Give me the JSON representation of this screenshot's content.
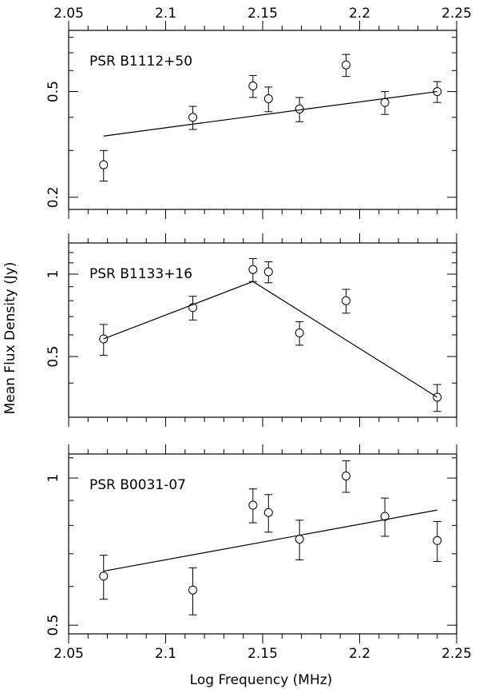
{
  "chart_data": {
    "type": "scatter",
    "xlabel": "Log Frequency (MHz)",
    "ylabel": "Mean Flux Density (Jy)",
    "xlim": [
      2.05,
      2.25
    ],
    "x_ticks": [
      "2.05",
      "2.1",
      "2.15",
      "2.2",
      "2.25"
    ],
    "grid": false,
    "panels": [
      {
        "label": "PSR B1112+50",
        "yscale": "log",
        "ylim": [
          0.18,
          0.85
        ],
        "y_ticks": [
          {
            "value": 0.2,
            "label": "0.2"
          },
          {
            "value": 0.5,
            "label": "0.5"
          }
        ],
        "points": [
          {
            "x": 2.068,
            "y": 0.265,
            "err": 0.035
          },
          {
            "x": 2.114,
            "y": 0.4,
            "err": 0.04
          },
          {
            "x": 2.145,
            "y": 0.525,
            "err": 0.05
          },
          {
            "x": 2.153,
            "y": 0.47,
            "err": 0.05
          },
          {
            "x": 2.169,
            "y": 0.43,
            "err": 0.045
          },
          {
            "x": 2.193,
            "y": 0.63,
            "err": 0.06
          },
          {
            "x": 2.213,
            "y": 0.455,
            "err": 0.045
          },
          {
            "x": 2.24,
            "y": 0.5,
            "err": 0.045
          }
        ],
        "fit": [
          {
            "x": 2.068,
            "y": 0.34
          },
          {
            "x": 2.24,
            "y": 0.5
          }
        ]
      },
      {
        "label": "PSR B1133+16",
        "yscale": "log",
        "ylim": [
          0.3,
          1.3
        ],
        "y_ticks": [
          {
            "value": 0.5,
            "label": "0.5"
          },
          {
            "value": 1,
            "label": "1"
          }
        ],
        "points": [
          {
            "x": 2.068,
            "y": 0.58,
            "err": 0.075
          },
          {
            "x": 2.114,
            "y": 0.755,
            "err": 0.075
          },
          {
            "x": 2.145,
            "y": 1.04,
            "err": 0.1
          },
          {
            "x": 2.153,
            "y": 1.02,
            "err": 0.09
          },
          {
            "x": 2.169,
            "y": 0.61,
            "err": 0.06
          },
          {
            "x": 2.193,
            "y": 0.8,
            "err": 0.08
          },
          {
            "x": 2.24,
            "y": 0.355,
            "err": 0.04
          }
        ],
        "fit": [
          {
            "x": 2.068,
            "y": 0.58
          },
          {
            "x": 2.145,
            "y": 0.94
          },
          {
            "x": 2.24,
            "y": 0.355
          }
        ]
      },
      {
        "label": "PSR B0031-07",
        "yscale": "log",
        "ylim": [
          0.48,
          1.12
        ],
        "y_ticks": [
          {
            "value": 0.5,
            "label": "0.5"
          },
          {
            "value": 1,
            "label": "1"
          }
        ],
        "points": [
          {
            "x": 2.068,
            "y": 0.63,
            "err": 0.065
          },
          {
            "x": 2.114,
            "y": 0.59,
            "err": 0.065
          },
          {
            "x": 2.145,
            "y": 0.88,
            "err": 0.07
          },
          {
            "x": 2.153,
            "y": 0.85,
            "err": 0.075
          },
          {
            "x": 2.169,
            "y": 0.75,
            "err": 0.07
          },
          {
            "x": 2.193,
            "y": 1.01,
            "err": 0.075
          },
          {
            "x": 2.213,
            "y": 0.835,
            "err": 0.075
          },
          {
            "x": 2.24,
            "y": 0.745,
            "err": 0.07
          }
        ],
        "fit": [
          {
            "x": 2.068,
            "y": 0.645
          },
          {
            "x": 2.24,
            "y": 0.86
          }
        ]
      }
    ]
  }
}
